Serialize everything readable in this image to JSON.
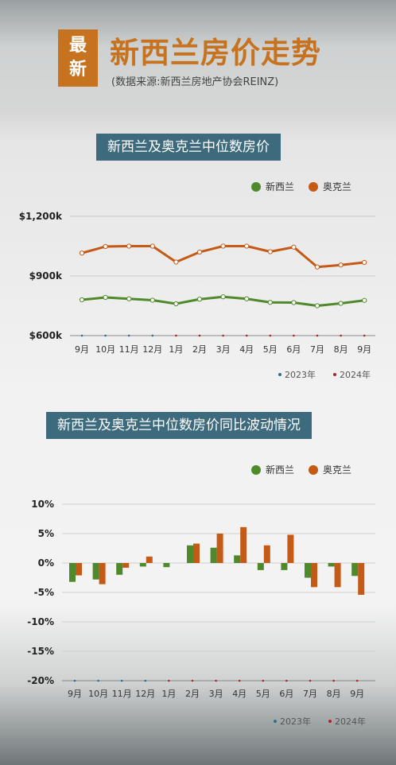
{
  "header": {
    "badge_line1": "最",
    "badge_line2": "新",
    "title": "新西兰房价走势",
    "source": "(数据来源:新西兰房地产协会REINZ)"
  },
  "colors": {
    "nz": "#4e8a2b",
    "auckland": "#c55a16",
    "year2023": "#2d6f8e",
    "year2024": "#b22222",
    "title_bg": "#3d6b7d",
    "accent": "#c7721e"
  },
  "chart_data": [
    {
      "type": "line",
      "title": "新西兰及奥克兰中位数房价",
      "categories": [
        "9月",
        "10月",
        "11月",
        "12月",
        "1月",
        "2月",
        "3月",
        "4月",
        "5月",
        "6月",
        "7月",
        "8月",
        "9月"
      ],
      "year_groups": [
        {
          "label": "2023年",
          "range": [
            0,
            3
          ]
        },
        {
          "label": "2024年",
          "range": [
            4,
            12
          ]
        }
      ],
      "series": [
        {
          "name": "新西兰",
          "values": [
            780,
            792,
            785,
            778,
            760,
            783,
            795,
            785,
            767,
            766,
            750,
            762,
            777
          ]
        },
        {
          "name": "奥克兰",
          "values": [
            1015,
            1048,
            1050,
            1050,
            970,
            1020,
            1050,
            1050,
            1022,
            1045,
            945,
            955,
            968
          ]
        }
      ],
      "ylim": [
        600,
        1200
      ],
      "yticks": [
        {
          "value": 600,
          "label": "$600k"
        },
        {
          "value": 900,
          "label": "$900k"
        },
        {
          "value": 1200,
          "label": "$1,200k"
        }
      ],
      "unit": "k NZD",
      "grid": true,
      "legend": "top-right"
    },
    {
      "type": "bar",
      "title": "新西兰及奥克兰中位数房价同比波动情况",
      "categories": [
        "9月",
        "10月",
        "11月",
        "12月",
        "1月",
        "2月",
        "3月",
        "4月",
        "5月",
        "6月",
        "7月",
        "8月",
        "9月"
      ],
      "year_groups": [
        {
          "label": "2023年",
          "range": [
            0,
            3
          ]
        },
        {
          "label": "2024年",
          "range": [
            4,
            12
          ]
        }
      ],
      "series": [
        {
          "name": "新西兰",
          "values": [
            -3.2,
            -2.8,
            -2.0,
            -0.6,
            -0.7,
            3.0,
            2.6,
            1.3,
            -1.2,
            -1.2,
            -2.5,
            -0.6,
            -2.2
          ]
        },
        {
          "name": "奥克兰",
          "values": [
            -2.1,
            -3.6,
            -0.8,
            1.1,
            0.0,
            3.3,
            5.0,
            6.1,
            3.0,
            4.8,
            -4.1,
            -4.1,
            -5.4
          ]
        }
      ],
      "ylim": [
        -20,
        10
      ],
      "yticks": [
        {
          "value": 10,
          "label": "10%"
        },
        {
          "value": 5,
          "label": "5%"
        },
        {
          "value": 0,
          "label": "0%"
        },
        {
          "value": -5,
          "label": "-5%"
        },
        {
          "value": -10,
          "label": "-10%"
        },
        {
          "value": -15,
          "label": "-15%"
        },
        {
          "value": -20,
          "label": "-20%"
        }
      ],
      "grid": true,
      "legend": "top-right"
    }
  ]
}
